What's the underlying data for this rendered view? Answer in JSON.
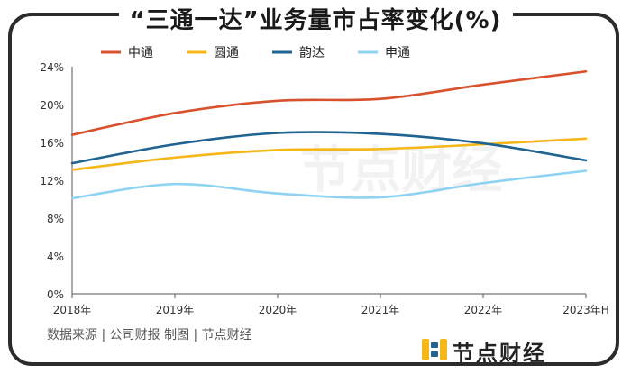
{
  "title": "“三通一达”业务量市占率变化(%)",
  "source_text": "数据来源 | 公司财报  制图 | 节点财经",
  "watermark": "节点财经",
  "logo_text": "节点财经",
  "chart_data": {
    "type": "line",
    "x": [
      "2018年",
      "2019年",
      "2020年",
      "2021年",
      "2022年",
      "2023年H"
    ],
    "ylim": [
      0,
      24
    ],
    "yticks": [
      0,
      4,
      8,
      12,
      16,
      20,
      24
    ],
    "ytick_labels": [
      "0%",
      "4%",
      "8%",
      "12%",
      "16%",
      "20%",
      "24%"
    ],
    "legend_position": "top-left",
    "grid": false,
    "series": [
      {
        "name": "中通",
        "color": "#d9512c",
        "values": [
          16.8,
          19.1,
          20.4,
          20.6,
          22.1,
          23.5
        ]
      },
      {
        "name": "圆通",
        "color": "#f5b719",
        "values": [
          13.1,
          14.4,
          15.2,
          15.3,
          15.8,
          16.4
        ]
      },
      {
        "name": "韵达",
        "color": "#1f6391",
        "values": [
          13.8,
          15.8,
          17.0,
          16.9,
          15.9,
          14.1
        ]
      },
      {
        "name": "申通",
        "color": "#8fd3f2",
        "values": [
          10.1,
          11.6,
          10.6,
          10.2,
          11.7,
          13.0
        ]
      }
    ]
  }
}
